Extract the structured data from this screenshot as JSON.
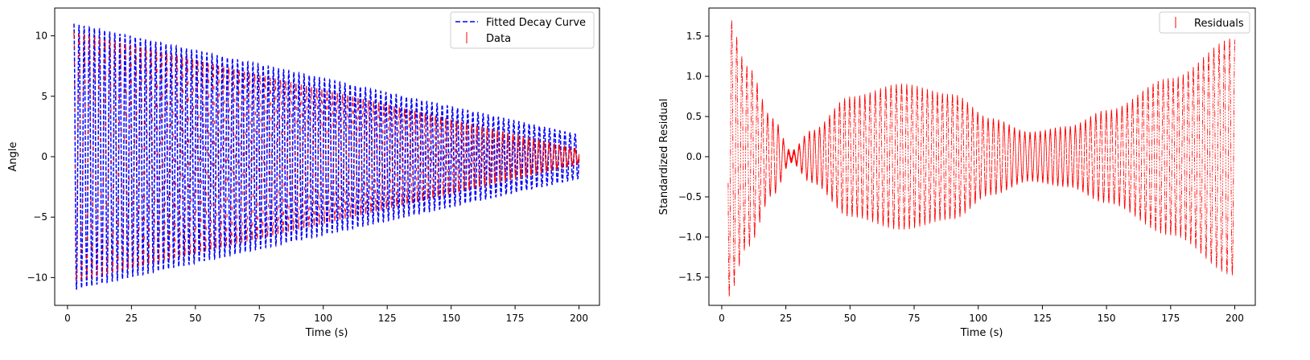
{
  "chart_data": [
    {
      "type": "line",
      "xlabel": "Time (s)",
      "ylabel": "Angle",
      "xlim": [
        -5,
        208
      ],
      "ylim": [
        -12.3,
        12.3
      ],
      "xticks": [
        0,
        25,
        50,
        75,
        100,
        125,
        150,
        175,
        200
      ],
      "yticks": [
        -10,
        -5,
        0,
        5,
        10
      ],
      "grid": false,
      "legend_position": "top-right",
      "legend": [
        "Fitted Decay Curve",
        "Data"
      ],
      "series": [
        {
          "name": "Fitted Decay Curve",
          "style": "dashed line",
          "color": "#0000ff",
          "t_start": 2.5,
          "t_end": 200,
          "envelope_start": 11.0,
          "envelope_end": 1.8,
          "oscillation_period": 2.0
        },
        {
          "name": "Data",
          "style": "error bars",
          "color": "#ff0000",
          "t_start": 2.5,
          "t_end": 200,
          "envelope_start": 10.2,
          "envelope_end": 0.5,
          "oscillation_period": 2.02
        }
      ]
    },
    {
      "type": "scatter",
      "xlabel": "Time (s)",
      "ylabel": "Standardized Residual",
      "xlim": [
        -5,
        208
      ],
      "ylim": [
        -1.85,
        1.85
      ],
      "xticks": [
        0,
        25,
        50,
        75,
        100,
        125,
        150,
        175,
        200
      ],
      "yticks": [
        -1.5,
        -1.0,
        -0.5,
        0.0,
        0.5,
        1.0,
        1.5
      ],
      "grid": false,
      "legend_position": "top-right",
      "legend": [
        "Residuals"
      ],
      "series": [
        {
          "name": "Residuals",
          "style": "error bars",
          "color": "#ff0000",
          "t_start": 2.5,
          "t_end": 200,
          "envelope_points": [
            [
              2.5,
              1.72
            ],
            [
              10,
              1.1
            ],
            [
              20,
              0.45
            ],
            [
              27,
              0.05
            ],
            [
              35,
              0.3
            ],
            [
              50,
              0.72
            ],
            [
              70,
              0.88
            ],
            [
              90,
              0.75
            ],
            [
              105,
              0.45
            ],
            [
              120,
              0.28
            ],
            [
              135,
              0.35
            ],
            [
              150,
              0.55
            ],
            [
              175,
              0.95
            ],
            [
              200,
              1.45
            ]
          ]
        }
      ]
    }
  ]
}
